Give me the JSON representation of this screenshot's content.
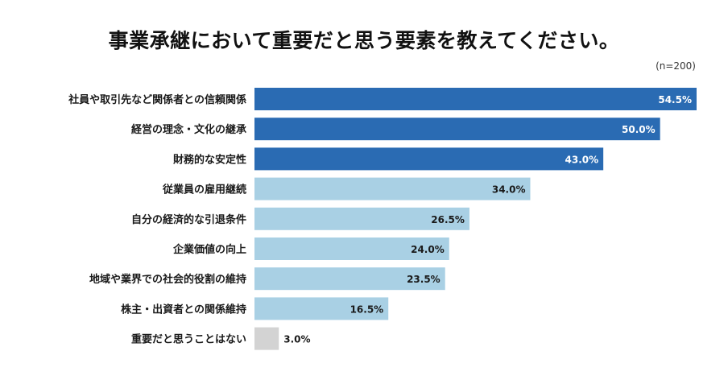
{
  "title": "事業承継において重要だと思う要素を教えてください。",
  "sample_note": "(n=200)",
  "colors": {
    "highlight": "#2a6bb3",
    "normal": "#a9d0e4",
    "none": "#d3d3d3",
    "label_in_bar": "#ffffff",
    "label_dark": "#1a1a1a"
  },
  "chart_data": {
    "type": "bar",
    "orientation": "horizontal",
    "categories": [
      "社員や取引先など関係者との信頼関係",
      "経営の理念・文化の継承",
      "財務的な安定性",
      "従業員の雇用継続",
      "自分の経済的な引退条件",
      "企業価値の向上",
      "地域や業界での社会的役割の維持",
      "株主・出資者との関係維持",
      "重要だと思うことはない"
    ],
    "values": [
      54.5,
      50.0,
      43.0,
      34.0,
      26.5,
      24.0,
      23.5,
      16.5,
      3.0
    ],
    "value_labels": [
      "54.5%",
      "50.0%",
      "43.0%",
      "34.0%",
      "26.5%",
      "24.0%",
      "23.5%",
      "16.5%",
      "3.0%"
    ],
    "bar_style": [
      "highlight",
      "highlight",
      "highlight",
      "normal",
      "normal",
      "normal",
      "normal",
      "normal",
      "none"
    ],
    "unit": "%",
    "xlim": [
      0,
      54.5
    ],
    "grid": false,
    "legend": "none"
  }
}
